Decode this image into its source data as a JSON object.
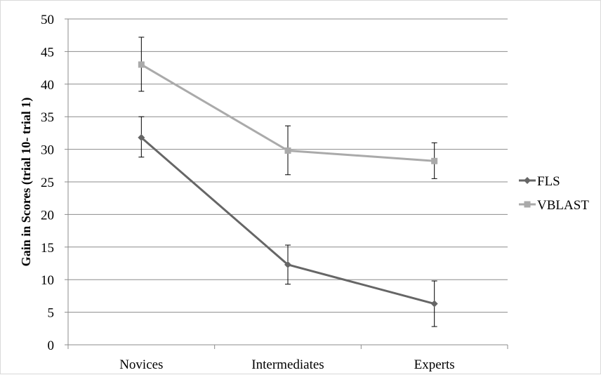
{
  "chart_data": {
    "type": "line",
    "categories": [
      "Novices",
      "Intermediates",
      "Experts"
    ],
    "series": [
      {
        "name": "FLS",
        "color": "#666666",
        "marker": "diamond",
        "values": [
          31.8,
          12.3,
          6.3
        ],
        "error_low": [
          28.8,
          9.3,
          2.8
        ],
        "error_high": [
          35.0,
          15.3,
          9.8
        ]
      },
      {
        "name": "VBLAST",
        "color": "#aaaaaa",
        "marker": "square",
        "values": [
          43.0,
          29.8,
          28.2
        ],
        "error_low": [
          38.9,
          26.1,
          25.5
        ],
        "error_high": [
          47.2,
          33.6,
          31.0
        ]
      }
    ],
    "ylabel": "Gain in Scores (trial 10- trial 1)",
    "xlabel": "",
    "ylim": [
      0,
      50
    ],
    "yticks": [
      0,
      5,
      10,
      15,
      20,
      25,
      30,
      35,
      40,
      45,
      50
    ],
    "grid": true,
    "legend_position": "right"
  }
}
